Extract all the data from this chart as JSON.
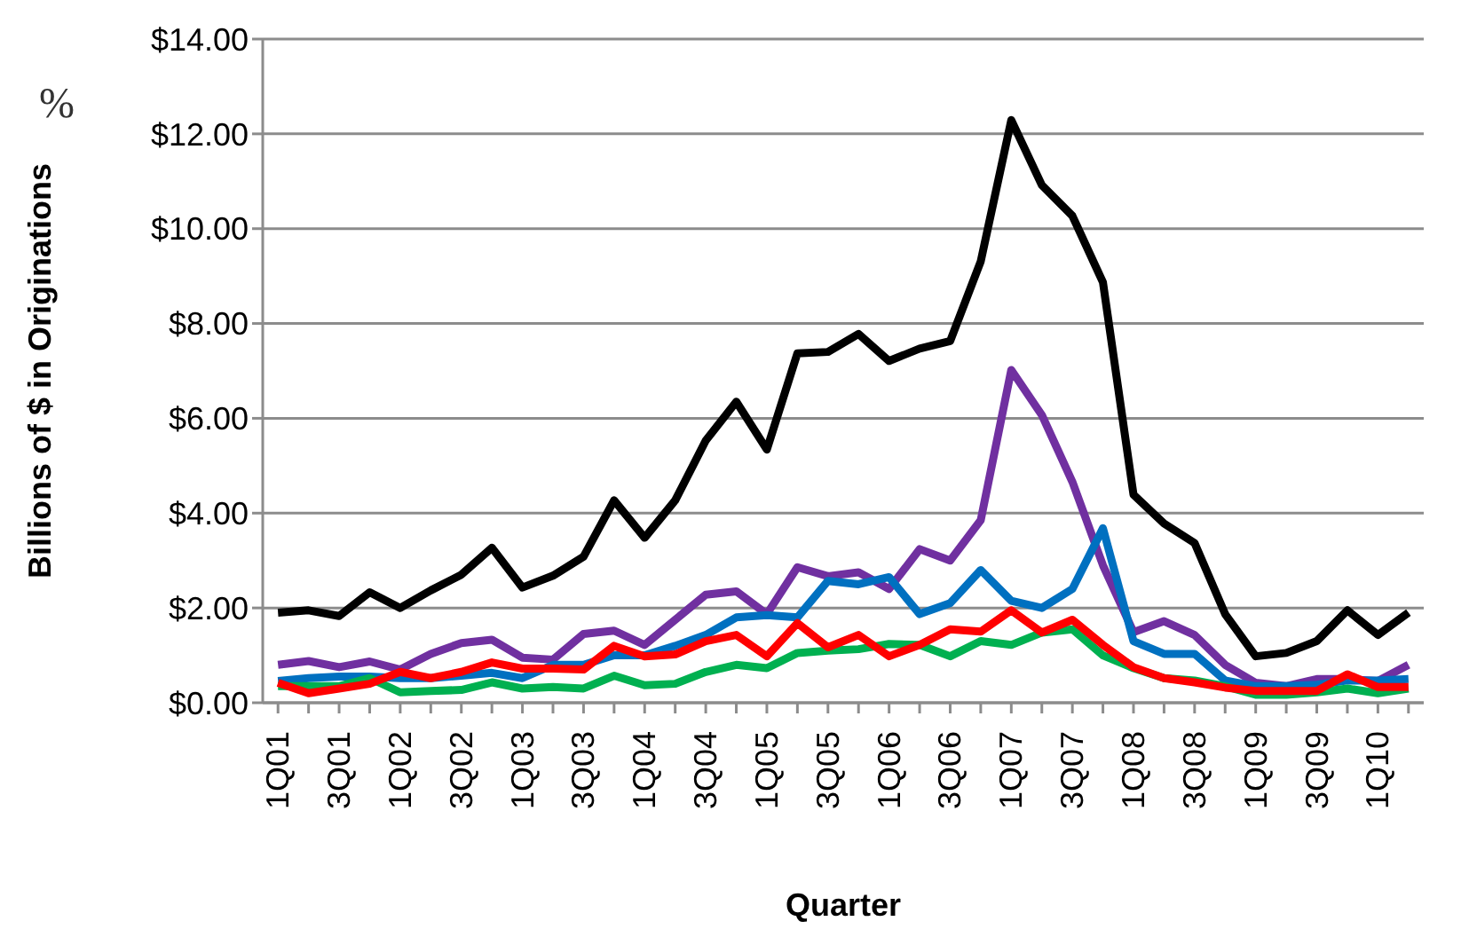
{
  "chart_data": {
    "type": "line",
    "xlabel": "Quarter",
    "ylabel": "Billions of $ in Originations",
    "annotations": [
      "%"
    ],
    "categories": [
      "1Q01",
      null,
      "3Q01",
      null,
      "1Q02",
      null,
      "3Q02",
      null,
      "1Q03",
      null,
      "3Q03",
      null,
      "1Q04",
      null,
      "3Q04",
      null,
      "1Q05",
      null,
      "3Q05",
      null,
      "1Q06",
      null,
      "3Q06",
      null,
      "1Q07",
      null,
      "3Q07",
      null,
      "1Q08",
      null,
      "3Q08",
      null,
      "1Q09",
      null,
      "3Q09",
      null,
      "1Q10",
      null
    ],
    "series": [
      {
        "color": "#000000",
        "values": [
          1.9,
          1.95,
          1.83,
          2.33,
          2.0,
          2.37,
          2.7,
          3.27,
          2.43,
          2.68,
          3.08,
          4.27,
          3.48,
          4.27,
          5.53,
          6.35,
          5.34,
          7.37,
          7.4,
          7.78,
          7.21,
          7.47,
          7.63,
          9.31,
          12.29,
          10.92,
          10.27,
          8.87,
          4.39,
          3.78,
          3.37,
          1.87,
          0.98,
          1.05,
          1.3,
          1.95,
          1.43,
          1.9
        ]
      },
      {
        "color": "#7030a0",
        "values": [
          0.8,
          0.88,
          0.75,
          0.87,
          0.7,
          1.03,
          1.26,
          1.33,
          0.95,
          0.91,
          1.45,
          1.52,
          1.22,
          1.75,
          2.28,
          2.35,
          1.87,
          2.86,
          2.67,
          2.75,
          2.4,
          3.24,
          3.0,
          3.85,
          7.02,
          6.07,
          4.66,
          2.9,
          1.49,
          1.72,
          1.43,
          0.8,
          0.42,
          0.35,
          0.5,
          0.5,
          0.46,
          0.8
        ]
      },
      {
        "color": "#0070c0",
        "values": [
          0.46,
          0.52,
          0.55,
          0.55,
          0.52,
          0.52,
          0.57,
          0.63,
          0.52,
          0.8,
          0.8,
          1.0,
          1.0,
          1.2,
          1.43,
          1.8,
          1.85,
          1.8,
          2.57,
          2.5,
          2.65,
          1.87,
          2.1,
          2.8,
          2.15,
          2.0,
          2.4,
          3.68,
          1.3,
          1.03,
          1.03,
          0.47,
          0.35,
          0.35,
          0.38,
          0.47,
          0.47,
          0.5
        ]
      },
      {
        "color": "#00b050",
        "values": [
          0.35,
          0.35,
          0.35,
          0.52,
          0.22,
          0.25,
          0.27,
          0.43,
          0.3,
          0.33,
          0.3,
          0.57,
          0.37,
          0.4,
          0.65,
          0.8,
          0.73,
          1.05,
          1.1,
          1.13,
          1.24,
          1.22,
          0.98,
          1.3,
          1.22,
          1.48,
          1.55,
          1.0,
          0.73,
          0.52,
          0.47,
          0.35,
          0.17,
          0.17,
          0.22,
          0.3,
          0.2,
          0.3
        ]
      },
      {
        "color": "#ff0000",
        "values": [
          0.42,
          0.2,
          0.3,
          0.4,
          0.65,
          0.52,
          0.65,
          0.85,
          0.72,
          0.72,
          0.7,
          1.2,
          0.98,
          1.02,
          1.3,
          1.43,
          0.98,
          1.68,
          1.17,
          1.43,
          0.98,
          1.22,
          1.55,
          1.5,
          1.95,
          1.48,
          1.75,
          1.22,
          0.75,
          0.52,
          0.43,
          0.32,
          0.25,
          0.25,
          0.25,
          0.6,
          0.33,
          0.33
        ]
      }
    ],
    "ylim": [
      0,
      14
    ],
    "yticks": [
      {
        "value": 0,
        "label": "$0.00"
      },
      {
        "value": 2,
        "label": "$2.00"
      },
      {
        "value": 4,
        "label": "$4.00"
      },
      {
        "value": 6,
        "label": "$6.00"
      },
      {
        "value": 8,
        "label": "$8.00"
      },
      {
        "value": 10,
        "label": "$10.00"
      },
      {
        "value": 12,
        "label": "$12.00"
      },
      {
        "value": 14,
        "label": "$14.00"
      }
    ],
    "grid": "y",
    "legend": false,
    "marker": "none",
    "line_style": "solid"
  }
}
